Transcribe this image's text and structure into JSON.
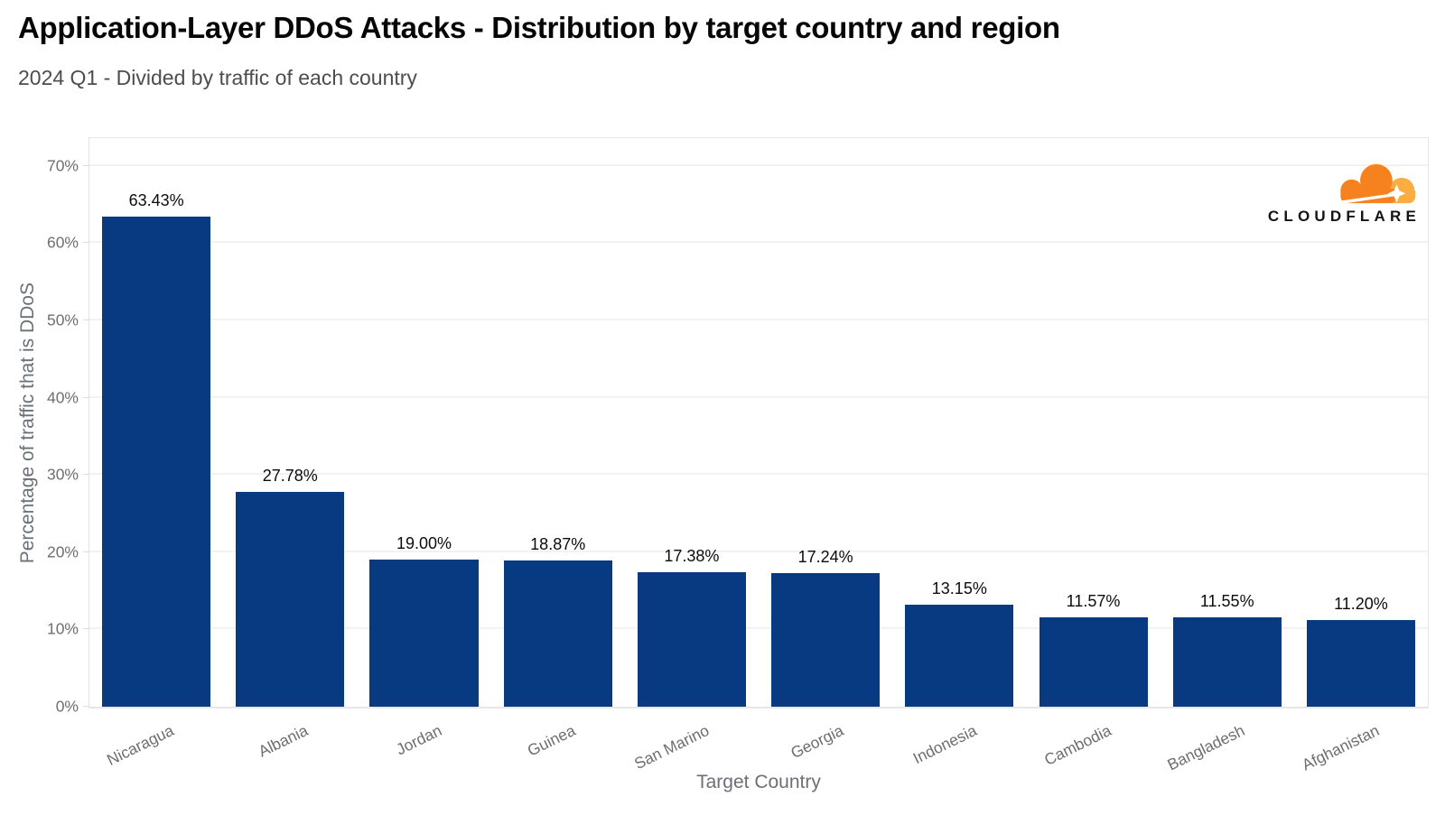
{
  "header": {
    "title": "Application-Layer DDoS Attacks - Distribution by target country and region",
    "subtitle": "2024 Q1 - Divided by traffic of each country"
  },
  "branding": {
    "logo_text": "CLOUDFLARE",
    "cloud_color": "#f6821f",
    "cloud_accent_color": "#fbad41"
  },
  "chart_data": {
    "type": "bar",
    "title": "Application-Layer DDoS Attacks - Distribution by target country and region",
    "subtitle": "2024 Q1 - Divided by traffic of each country",
    "categories": [
      "Nicaragua",
      "Albania",
      "Jordan",
      "Guinea",
      "San Marino",
      "Georgia",
      "Indonesia",
      "Cambodia",
      "Bangladesh",
      "Afghanistan"
    ],
    "values": [
      63.43,
      27.78,
      19.0,
      18.87,
      17.38,
      17.24,
      13.15,
      11.57,
      11.55,
      11.2
    ],
    "value_labels": [
      "63.43%",
      "27.78%",
      "19.00%",
      "18.87%",
      "17.38%",
      "17.24%",
      "13.15%",
      "11.57%",
      "11.55%",
      "11.20%"
    ],
    "xlabel": "Target Country",
    "ylabel": "Percentage of traffic that is DDoS",
    "ylim": [
      0,
      73.6
    ],
    "yticks": [
      0,
      10,
      20,
      30,
      40,
      50,
      60,
      70
    ],
    "ytick_labels": [
      "0%",
      "10%",
      "20%",
      "30%",
      "40%",
      "50%",
      "60%",
      "70%"
    ],
    "grid": true,
    "legend": "none",
    "bar_color": "#083a81"
  }
}
